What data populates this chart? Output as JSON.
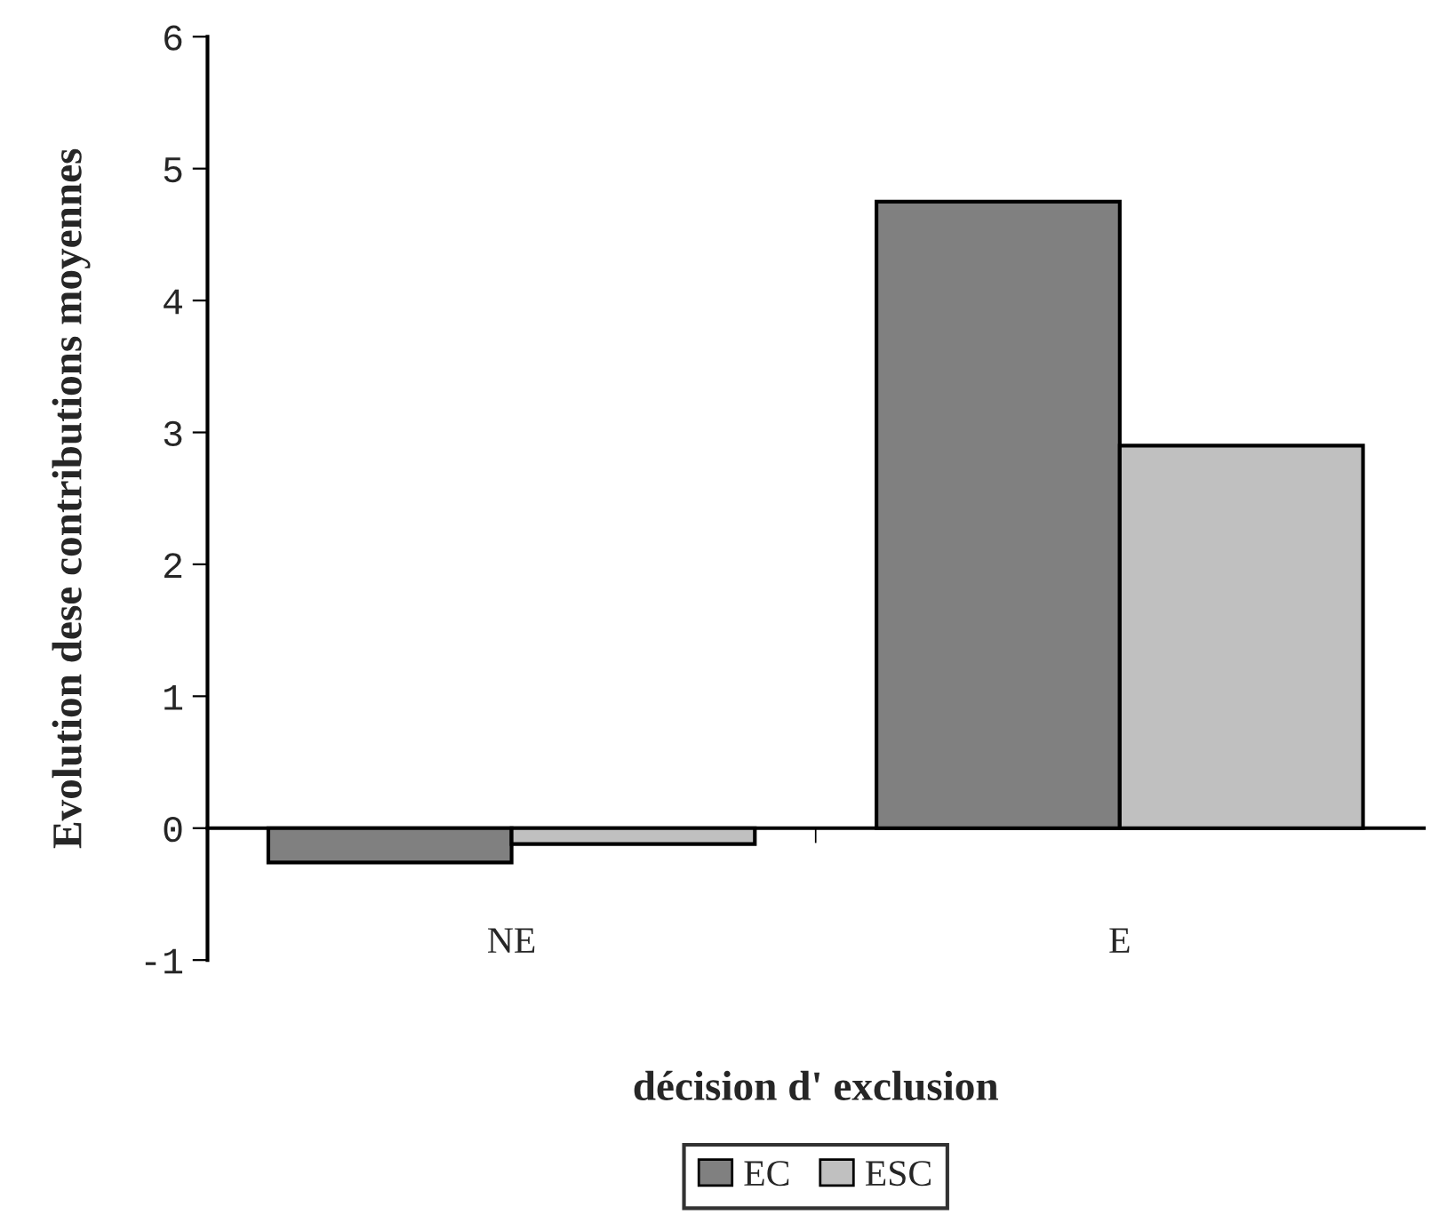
{
  "chart_data": {
    "type": "bar",
    "xlabel": "décision d' exclusion",
    "ylabel": "Evolution dese contributions moyennes",
    "categories": [
      "NE",
      "E"
    ],
    "series": [
      {
        "name": "EC",
        "color": "#808080",
        "values": [
          -0.26,
          4.75
        ]
      },
      {
        "name": "ESC",
        "color": "#c0c0c0",
        "values": [
          -0.12,
          2.9
        ]
      }
    ],
    "ylim": [
      -1,
      6
    ],
    "yticks": [
      -1,
      0,
      1,
      2,
      3,
      4,
      5,
      6
    ],
    "legend": "bottom"
  }
}
